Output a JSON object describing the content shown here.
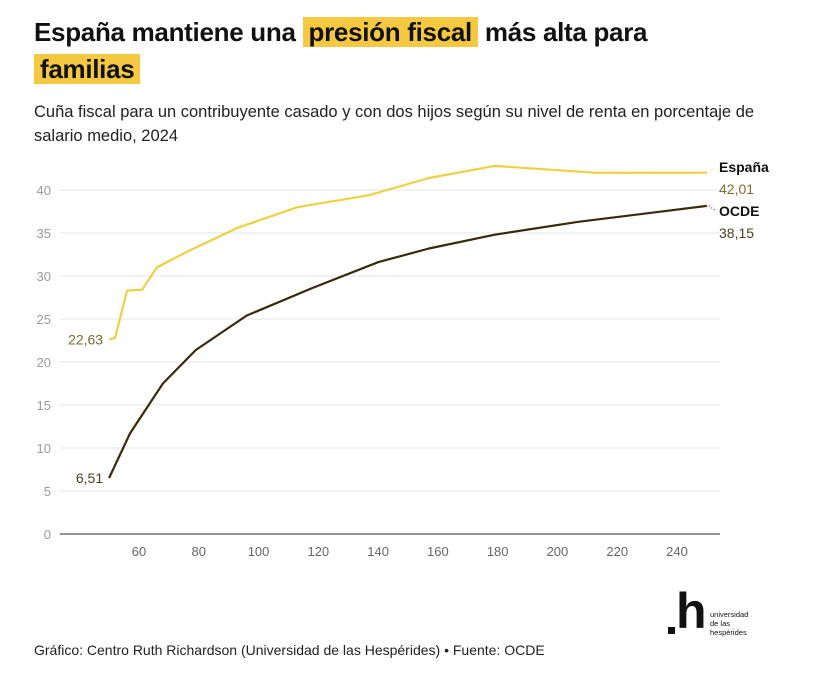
{
  "header": {
    "title_part1": "España mantiene una ",
    "title_highlight1": "presión fiscal",
    "title_part2": " más alta para ",
    "title_highlight2": "familias",
    "subtitle": "Cuña fiscal para un contribuyente casado y con dos hijos según su nivel de renta en porcentaje de salario medio, 2024",
    "highlight_color": "#f5c842"
  },
  "footer": {
    "source": "Gráfico: Centro Ruth Richardson (Universidad de las Hespérides) • Fuente: OCDE"
  },
  "logo": {
    "mark": "h",
    "text_line1": "universidad",
    "text_line2": "de las",
    "text_line3": "hespérides"
  },
  "chart_data": {
    "type": "line",
    "title": "",
    "xlabel": "",
    "ylabel": "",
    "xlim": [
      40,
      255
    ],
    "ylim": [
      0,
      42
    ],
    "x_ticks": [
      60,
      80,
      100,
      120,
      140,
      160,
      180,
      200,
      220,
      240
    ],
    "y_ticks": [
      0,
      5,
      10,
      15,
      20,
      25,
      30,
      35,
      40
    ],
    "grid": "horizontal",
    "legend": "direct labels at line ends (right)",
    "series": [
      {
        "name": "España",
        "color": "#f0d040",
        "label_color": "#7d6c2c",
        "start_label": "22,63",
        "end_label": "42,01",
        "points": [
          [
            50,
            22.63
          ],
          [
            52,
            22.8
          ],
          [
            56,
            28.3
          ],
          [
            61,
            28.4
          ],
          [
            66,
            31.0
          ],
          [
            76,
            32.8
          ],
          [
            93,
            35.6
          ],
          [
            113,
            38.0
          ],
          [
            137,
            39.4
          ],
          [
            157,
            41.4
          ],
          [
            179,
            42.8
          ],
          [
            213,
            42.0
          ],
          [
            250,
            42.01
          ]
        ]
      },
      {
        "name": "OCDE",
        "color": "#3a2a0a",
        "label_color": "#4e4020",
        "start_label": "6,51",
        "end_label": "38,15",
        "points": [
          [
            50,
            6.51
          ],
          [
            57,
            11.7
          ],
          [
            68,
            17.5
          ],
          [
            79,
            21.4
          ],
          [
            96,
            25.4
          ],
          [
            118,
            28.6
          ],
          [
            140,
            31.6
          ],
          [
            157,
            33.2
          ],
          [
            179,
            34.8
          ],
          [
            207,
            36.3
          ],
          [
            250,
            38.15
          ]
        ]
      }
    ]
  }
}
